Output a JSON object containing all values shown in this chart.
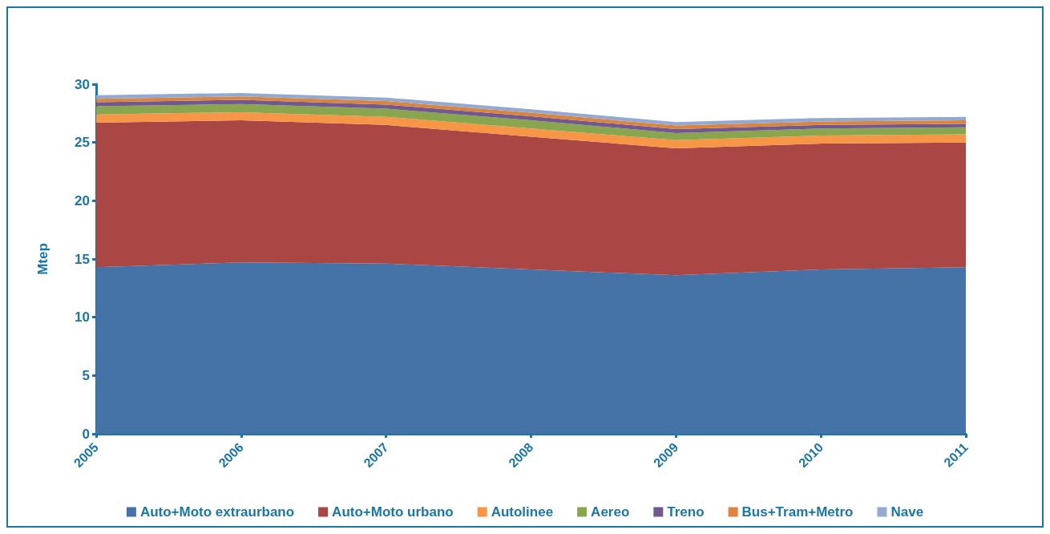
{
  "chart_data": {
    "type": "area",
    "stacked": true,
    "ylabel": "Mtep",
    "categories": [
      "2005",
      "2006",
      "2007",
      "2008",
      "2009",
      "2010",
      "2011"
    ],
    "ylim": [
      0,
      30
    ],
    "yticks": [
      0,
      5,
      10,
      15,
      20,
      25,
      30
    ],
    "legend": "bottom",
    "grid": false,
    "series": [
      {
        "name": "Auto+Moto extraurbano",
        "color": "#4572a7",
        "values": [
          14.3,
          14.7,
          14.6,
          14.1,
          13.6,
          14.1,
          14.3
        ]
      },
      {
        "name": "Auto+Moto urbano",
        "color": "#aa4643",
        "values": [
          12.4,
          12.2,
          11.9,
          11.4,
          10.9,
          10.8,
          10.7
        ]
      },
      {
        "name": "Autolinee",
        "color": "#f79646",
        "values": [
          0.7,
          0.7,
          0.7,
          0.7,
          0.7,
          0.7,
          0.7
        ]
      },
      {
        "name": "Aereo",
        "color": "#89a54e",
        "values": [
          0.7,
          0.7,
          0.7,
          0.7,
          0.6,
          0.6,
          0.6
        ]
      },
      {
        "name": "Treno",
        "color": "#71588f",
        "values": [
          0.35,
          0.35,
          0.35,
          0.35,
          0.35,
          0.3,
          0.3
        ]
      },
      {
        "name": "Bus+Tram+Metro",
        "color": "#db843d",
        "values": [
          0.3,
          0.3,
          0.3,
          0.3,
          0.3,
          0.3,
          0.3
        ]
      },
      {
        "name": "Nave",
        "color": "#93a9cf",
        "values": [
          0.3,
          0.3,
          0.3,
          0.3,
          0.3,
          0.3,
          0.3
        ]
      }
    ]
  }
}
